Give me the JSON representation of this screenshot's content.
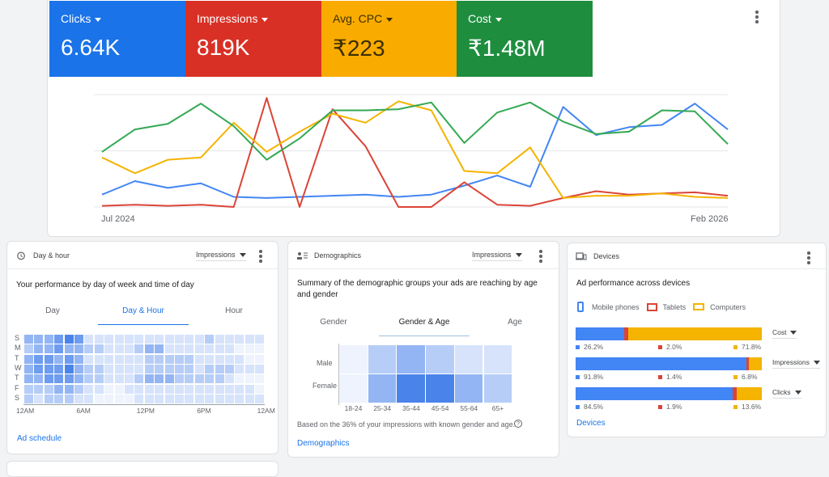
{
  "colors": {
    "clicks": "#1a73e8",
    "impressions": "#d93025",
    "cpc": "#f9ab00",
    "cost": "#1e8e3e",
    "mobile": "#4285f4",
    "tablet": "#db4437",
    "computer": "#f4b400"
  },
  "summary": {
    "tiles": [
      {
        "label": "Clicks",
        "value": "6.64K",
        "color": "#1a73e8"
      },
      {
        "label": "Impressions",
        "value": "819K",
        "color": "#d93025"
      },
      {
        "label": "Avg. CPC",
        "value": "₹223",
        "color": "#f9ab00"
      },
      {
        "label": "Cost",
        "value": "₹1.48M",
        "color": "#1e8e3e"
      }
    ]
  },
  "chart_data": {
    "type": "line",
    "x_start_label": "Jul 2024",
    "x_end_label": "Feb 2026",
    "grid": true,
    "ylim": [
      0,
      100
    ],
    "series": [
      {
        "metric": "clicks",
        "color": "#4285f4",
        "values": [
          11,
          23,
          17,
          21,
          9,
          8,
          9,
          10,
          11,
          9,
          11,
          19,
          28,
          18,
          89,
          64,
          71,
          73,
          92,
          69
        ]
      },
      {
        "metric": "impressions",
        "color": "#db4437",
        "values": [
          1,
          2,
          1,
          2,
          0,
          97,
          0,
          87,
          54,
          0,
          0,
          22,
          2,
          1,
          8,
          14,
          11,
          12,
          13,
          10
        ]
      },
      {
        "metric": "cpc",
        "color": "#f4b400",
        "values": [
          44,
          30,
          42,
          44,
          75,
          49,
          67,
          83,
          75,
          94,
          86,
          32,
          30,
          53,
          8,
          10,
          10,
          12,
          9,
          8
        ]
      },
      {
        "metric": "cost",
        "color": "#34a853",
        "values": [
          49,
          69,
          74,
          92,
          72,
          42,
          61,
          86,
          86,
          87,
          93,
          57,
          84,
          93,
          76,
          65,
          67,
          86,
          85,
          56
        ]
      }
    ]
  },
  "dayhour": {
    "title": "Day & hour",
    "metric": "Impressions",
    "subtitle": "Your performance by day of week and time of day",
    "tabs": [
      "Day",
      "Day & Hour",
      "Hour"
    ],
    "active_tab": 1,
    "days": [
      "S",
      "M",
      "T",
      "W",
      "T",
      "F",
      "S"
    ],
    "hour_labels": [
      "12AM",
      "6AM",
      "12PM",
      "6PM",
      "12AM"
    ],
    "intensity": [
      [
        3,
        3,
        3,
        4,
        5,
        4,
        1,
        1,
        1,
        1,
        1,
        1,
        1,
        1,
        1,
        1,
        1,
        1,
        2,
        1,
        1,
        1,
        1,
        1
      ],
      [
        2,
        3,
        3,
        4,
        3,
        3,
        2,
        2,
        1,
        1,
        1,
        2,
        3,
        3,
        1,
        1,
        1,
        1,
        1,
        1,
        1,
        0,
        0,
        0
      ],
      [
        3,
        4,
        4,
        3,
        4,
        3,
        1,
        1,
        1,
        1,
        1,
        1,
        2,
        2,
        2,
        2,
        2,
        1,
        1,
        1,
        1,
        1,
        0,
        0
      ],
      [
        3,
        4,
        4,
        4,
        5,
        3,
        2,
        2,
        1,
        1,
        1,
        1,
        2,
        2,
        2,
        2,
        2,
        1,
        2,
        2,
        2,
        1,
        1,
        1
      ],
      [
        3,
        3,
        4,
        4,
        4,
        3,
        2,
        2,
        1,
        1,
        1,
        2,
        3,
        3,
        3,
        2,
        2,
        2,
        2,
        2,
        1,
        0,
        0,
        0
      ],
      [
        2,
        2,
        2,
        3,
        3,
        2,
        1,
        1,
        0,
        0,
        1,
        1,
        1,
        1,
        1,
        1,
        1,
        1,
        1,
        1,
        1,
        1,
        1,
        0
      ],
      [
        2,
        1,
        2,
        2,
        2,
        1,
        1,
        0,
        0,
        0,
        0,
        1,
        1,
        1,
        1,
        1,
        1,
        1,
        1,
        1,
        1,
        1,
        1,
        1
      ]
    ],
    "link": "Ad schedule"
  },
  "demographics": {
    "title": "Demographics",
    "metric": "Impressions",
    "subtitle": "Summary of the demographic groups your ads are reaching by age and gender",
    "tabs": [
      "Gender",
      "Gender & Age",
      "Age"
    ],
    "active_tab": 1,
    "genders": [
      "Male",
      "Female"
    ],
    "ages": [
      "18-24",
      "25-34",
      "35-44",
      "45-54",
      "55-64",
      "65+"
    ],
    "intensity": [
      [
        0,
        2,
        3,
        2,
        1,
        1
      ],
      [
        0,
        3,
        5,
        5,
        3,
        2
      ]
    ],
    "note": "Based on the 36% of your impressions with known gender and age.",
    "link": "Demographics"
  },
  "devices": {
    "title": "Devices",
    "subtitle": "Ad performance across devices",
    "legend": [
      "Mobile phones",
      "Tablets",
      "Computers"
    ],
    "rows": [
      {
        "metric": "Cost",
        "values": [
          26.2,
          2.0,
          71.8
        ],
        "labels": [
          "26.2%",
          "2.0%",
          "71.8%"
        ]
      },
      {
        "metric": "Impressions",
        "values": [
          91.8,
          1.4,
          6.8
        ],
        "labels": [
          "91.8%",
          "1.4%",
          "6.8%"
        ]
      },
      {
        "metric": "Clicks",
        "values": [
          84.5,
          1.9,
          13.6
        ],
        "labels": [
          "84.5%",
          "1.9%",
          "13.6%"
        ]
      }
    ],
    "link": "Devices"
  }
}
